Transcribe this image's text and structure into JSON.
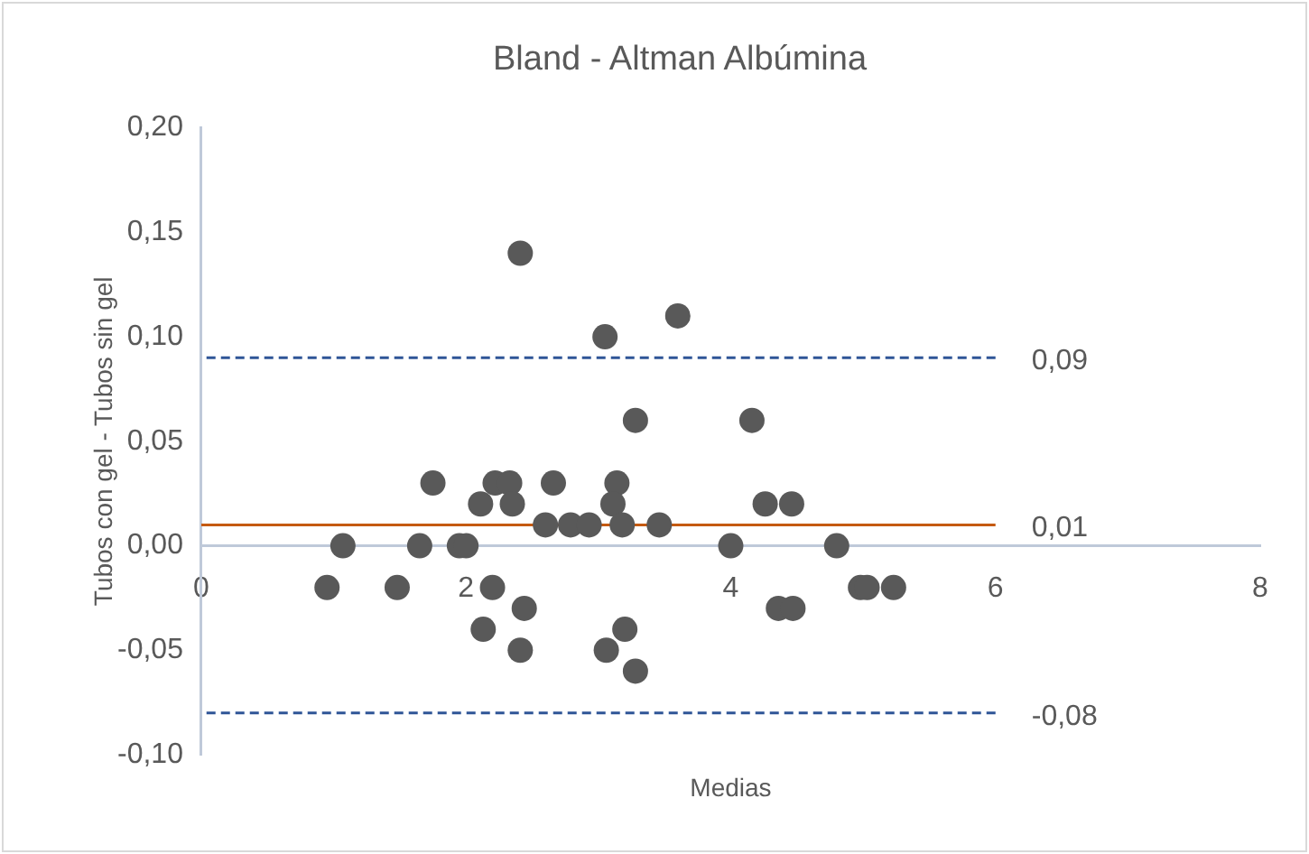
{
  "chart_data": {
    "type": "scatter",
    "title": "Bland - Altman Albúmina",
    "xlabel": "Medias",
    "ylabel": "Tubos con gel - Tubos sin gel",
    "xlim": [
      0,
      8
    ],
    "xticks": [
      0,
      2,
      4,
      6,
      8
    ],
    "ylim": [
      -0.1,
      0.2
    ],
    "yticks": [
      {
        "value": -0.1,
        "label": "-0,10"
      },
      {
        "value": -0.05,
        "label": "-0,05"
      },
      {
        "value": 0,
        "label": "0,00"
      },
      {
        "value": 0.05,
        "label": "0,05"
      },
      {
        "value": 0.1,
        "label": "0,10"
      },
      {
        "value": 0.15,
        "label": "0,15"
      },
      {
        "value": 0.2,
        "label": "0,20"
      }
    ],
    "series": [
      {
        "color": "#595959",
        "marker": "circle",
        "x": [
          0.95,
          1.07,
          1.48,
          1.75,
          1.65,
          1.95,
          2.0,
          2.11,
          2.2,
          2.13,
          2.22,
          2.33,
          2.35,
          2.44,
          2.41,
          2.66,
          2.6,
          2.79,
          2.93,
          3.14,
          3.11,
          3.18,
          3.06,
          3.2,
          3.28,
          3.46,
          4.0,
          4.26,
          2.41,
          3.05,
          3.6,
          3.28,
          4.16,
          4.46,
          4.8,
          4.98,
          5.03,
          5.23,
          4.36,
          4.47
        ],
        "values": [
          -0.02,
          0,
          -0.02,
          0.03,
          0,
          0,
          0,
          0.02,
          -0.02,
          -0.04,
          0.03,
          0.03,
          0.02,
          -0.03,
          -0.05,
          0.03,
          0.01,
          0.01,
          0.01,
          0.03,
          0.02,
          0.01,
          -0.05,
          -0.04,
          -0.06,
          0.01,
          0,
          0.02,
          0.14,
          0.1,
          0.11,
          0.06,
          0.06,
          0.02,
          0,
          -0.02,
          -0.02,
          -0.02,
          -0.03,
          -0.03
        ]
      },
      {
        "type": "line",
        "name": "0,09",
        "color": "#2f5597",
        "line_style": "dashed",
        "marker": "none",
        "x": [
          0,
          6
        ],
        "values": [
          0.09,
          0.09
        ]
      },
      {
        "type": "line",
        "name": "0,01",
        "color": "#c55a11",
        "line_style": "solid",
        "marker": "none",
        "x": [
          0,
          6
        ],
        "values": [
          0.01,
          0.01
        ]
      },
      {
        "type": "line",
        "name": "-0,08",
        "color": "#2f5597",
        "line_style": "dashed",
        "marker": "none",
        "x": [
          0,
          6
        ],
        "values": [
          -0.08,
          -0.08
        ]
      }
    ]
  }
}
